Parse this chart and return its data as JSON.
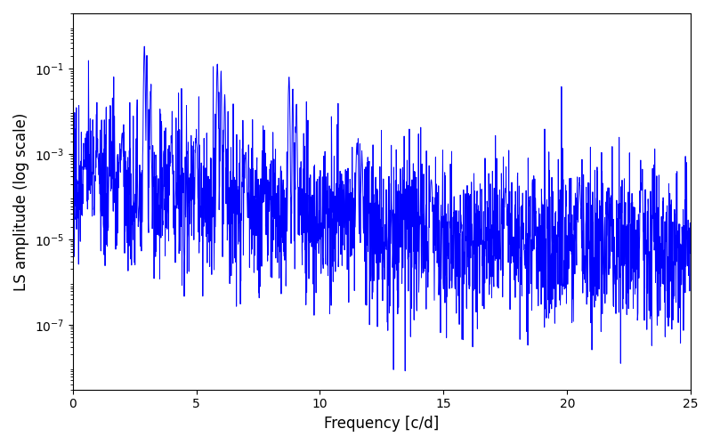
{
  "xlabel": "Frequency [c/d]",
  "ylabel": "LS amplitude (log scale)",
  "xlim": [
    0,
    25
  ],
  "ylim": [
    3e-09,
    2.0
  ],
  "line_color": "#0000ff",
  "line_width": 0.7,
  "figsize": [
    8.0,
    5.0
  ],
  "dpi": 100,
  "bg_color": "#ffffff",
  "yticks": [
    1e-07,
    1e-05,
    0.001,
    0.1
  ],
  "xticks": [
    0,
    5,
    10,
    15,
    20,
    25
  ],
  "seed": 77,
  "n_points": 2500
}
